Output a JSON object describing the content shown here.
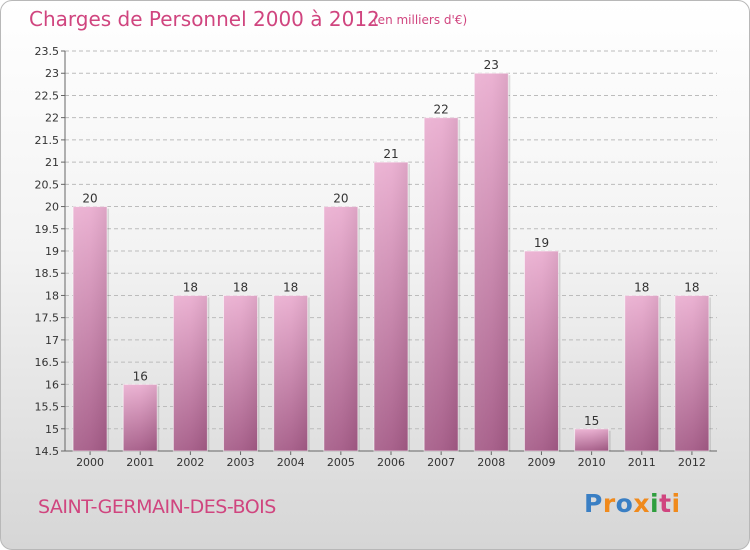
{
  "title": "Charges de Personnel 2000 à 2012",
  "unit_note": "(en milliers d'€)",
  "commune": "SAINT-GERMAIN-DES-BOIS",
  "logo": {
    "text": "Proxiti",
    "letters": [
      {
        "ch": "P",
        "color": "#3a7fc4"
      },
      {
        "ch": "r",
        "color": "#f08a1c"
      },
      {
        "ch": "o",
        "color": "#3a7fc4"
      },
      {
        "ch": "x",
        "color": "#f08a1c"
      },
      {
        "ch": "i",
        "color": "#2f9e3e"
      },
      {
        "ch": "t",
        "color": "#d0457f"
      },
      {
        "ch": "i",
        "color": "#f08a1c"
      }
    ]
  },
  "colors": {
    "title": "#d0457f",
    "bar_top": "#eaaed0",
    "bar_bottom": "#a45a86",
    "grid": "#bcbcbc"
  },
  "chart_data": {
    "type": "bar",
    "title": "Charges de Personnel 2000 à 2012",
    "categories": [
      "2000",
      "2001",
      "2002",
      "2003",
      "2004",
      "2005",
      "2006",
      "2007",
      "2008",
      "2009",
      "2010",
      "2011",
      "2012"
    ],
    "values": [
      20,
      16,
      18,
      18,
      18,
      20,
      21,
      22,
      23,
      19,
      15,
      18,
      18
    ],
    "ylim": [
      14.5,
      23.5
    ],
    "yticks": [
      "14.5",
      "15",
      "15.5",
      "16",
      "16.5",
      "17",
      "17.5",
      "18",
      "18.5",
      "19",
      "19.5",
      "20",
      "20.5",
      "21",
      "21.5",
      "22",
      "22.5",
      "23",
      "23.5"
    ],
    "grid": true,
    "legend": "none"
  }
}
